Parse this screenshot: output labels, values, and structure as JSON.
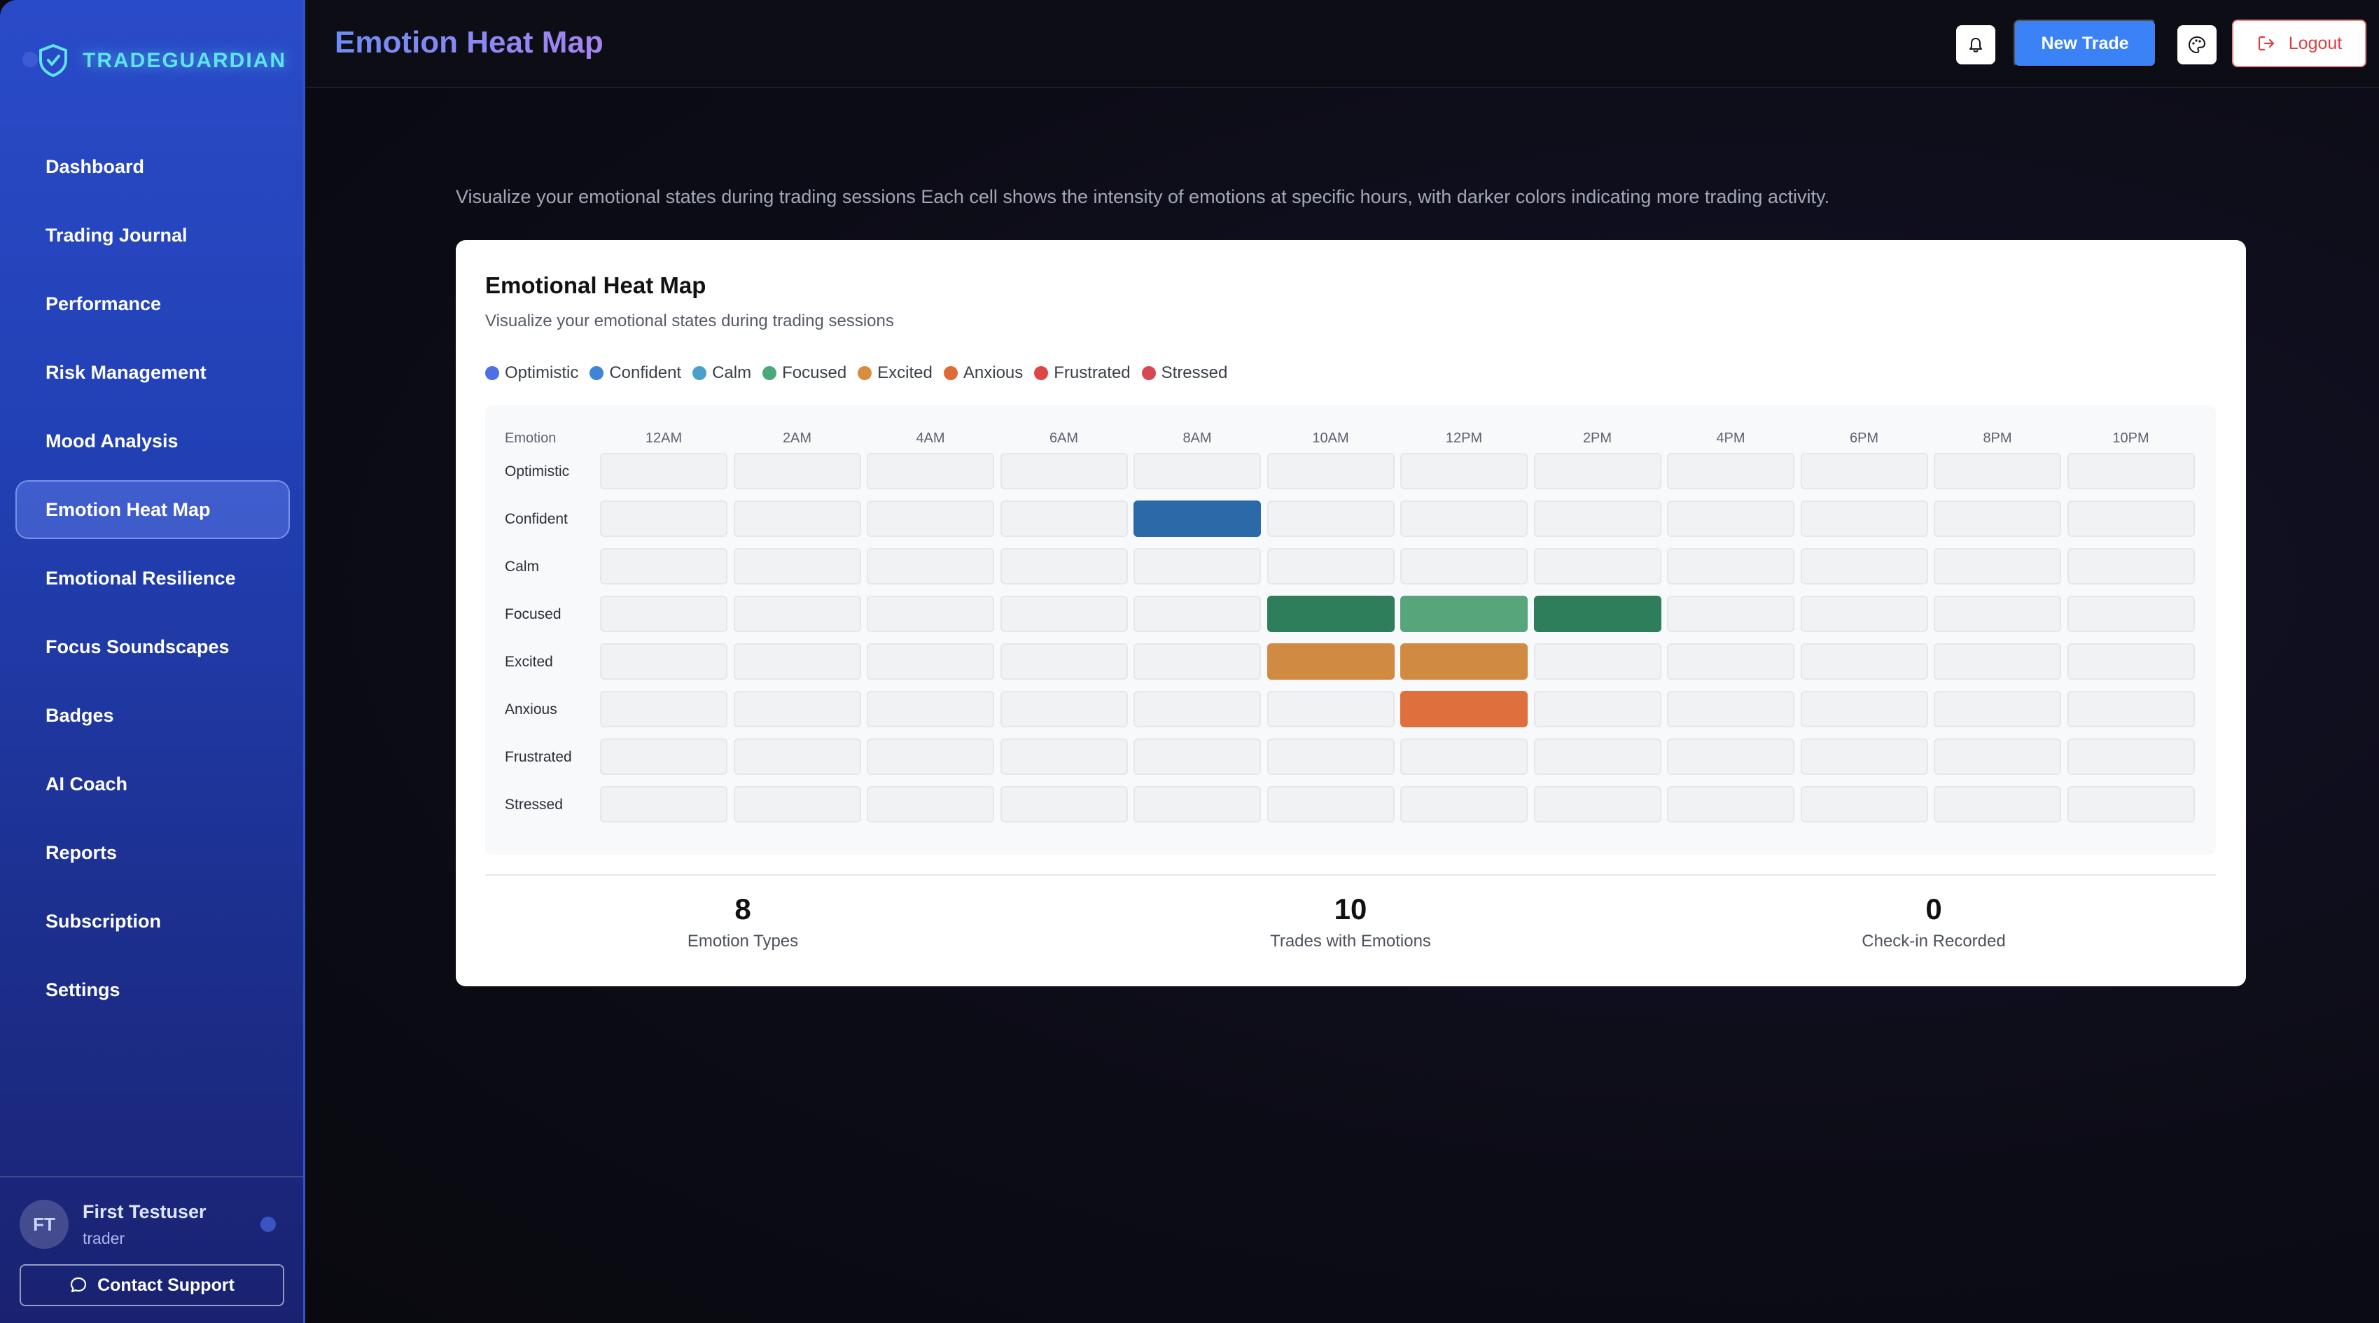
{
  "brand": {
    "name": "TRADEGUARDIAN"
  },
  "sidebar": {
    "items": [
      {
        "label": "Dashboard",
        "active": false
      },
      {
        "label": "Trading Journal",
        "active": false
      },
      {
        "label": "Performance",
        "active": false
      },
      {
        "label": "Risk Management",
        "active": false
      },
      {
        "label": "Mood Analysis",
        "active": false
      },
      {
        "label": "Emotion Heat Map",
        "active": true
      },
      {
        "label": "Emotional Resilience",
        "active": false
      },
      {
        "label": "Focus Soundscapes",
        "active": false
      },
      {
        "label": "Badges",
        "active": false
      },
      {
        "label": "AI Coach",
        "active": false
      },
      {
        "label": "Reports",
        "active": false
      },
      {
        "label": "Subscription",
        "active": false
      },
      {
        "label": "Settings",
        "active": false
      }
    ],
    "user": {
      "initials": "FT",
      "name": "First Testuser",
      "role": "trader"
    },
    "support_label": "Contact Support"
  },
  "header": {
    "title": "Emotion Heat Map",
    "new_trade_label": "New Trade",
    "logout_label": "Logout",
    "icons": [
      "bell-icon",
      "palette-icon",
      "logout-icon"
    ]
  },
  "main": {
    "intro": "Visualize your emotional states during trading sessions Each cell shows the intensity of emotions at specific hours, with darker colors indicating more trading activity."
  },
  "card": {
    "title": "Emotional Heat Map",
    "subtitle": "Visualize your emotional states during trading sessions",
    "legend": [
      {
        "label": "Optimistic",
        "color": "#4f6ee8"
      },
      {
        "label": "Confident",
        "color": "#3f84d9"
      },
      {
        "label": "Calm",
        "color": "#4aa0c8"
      },
      {
        "label": "Focused",
        "color": "#4aa879"
      },
      {
        "label": "Excited",
        "color": "#d98c3e"
      },
      {
        "label": "Anxious",
        "color": "#e06a36"
      },
      {
        "label": "Frustrated",
        "color": "#df4646"
      },
      {
        "label": "Stressed",
        "color": "#d94654"
      }
    ],
    "grid": {
      "corner_label": "Emotion",
      "hours": [
        "12AM",
        "2AM",
        "4AM",
        "6AM",
        "8AM",
        "10AM",
        "12PM",
        "2PM",
        "4PM",
        "6PM",
        "8PM",
        "10PM"
      ],
      "emotions": [
        "Optimistic",
        "Confident",
        "Calm",
        "Focused",
        "Excited",
        "Anxious",
        "Frustrated",
        "Stressed"
      ],
      "empty_color": "#f1f2f4",
      "filled": [
        {
          "row": 1,
          "col": 4,
          "color": "#2b69a8"
        },
        {
          "row": 3,
          "col": 5,
          "color": "#2e7d5b"
        },
        {
          "row": 3,
          "col": 6,
          "color": "#56a57b"
        },
        {
          "row": 3,
          "col": 7,
          "color": "#2e7d5b"
        },
        {
          "row": 4,
          "col": 5,
          "color": "#d08a41"
        },
        {
          "row": 4,
          "col": 6,
          "color": "#d08a41"
        },
        {
          "row": 5,
          "col": 6,
          "color": "#df6f3c"
        }
      ]
    },
    "stats": [
      {
        "value": "8",
        "label": "Emotion Types"
      },
      {
        "value": "10",
        "label": "Trades with Emotions"
      },
      {
        "value": "0",
        "label": "Check-in Recorded"
      }
    ]
  }
}
